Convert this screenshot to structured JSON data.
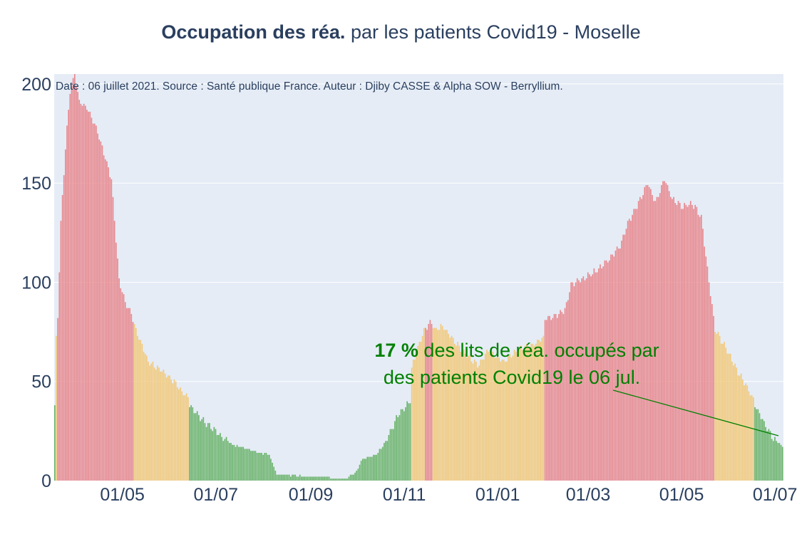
{
  "title": {
    "bold": "Occupation des réa.",
    "rest": " par les patients Covid19 - Moselle"
  },
  "source_note": "Date : 06 juillet 2021. Source : Santé publique France. Auteur : Djiby CASSE & Alpha SOW - Berryllium.",
  "annotation": {
    "percent": "17  %",
    "line1_rest": " des lits de réa. occupés par",
    "line2": "des patients Covid19 le 06 jul.",
    "color": "#008000"
  },
  "colors": {
    "red": "#e8878d",
    "red_edge": "#cc4a55",
    "orange": "#f2c97a",
    "green": "#6bb36b",
    "plot_bg": "#e5ecf6",
    "grid": "#ffffff",
    "text": "#2a3f5f"
  },
  "chart_data": {
    "type": "bar",
    "x_start": "2020-03-18",
    "x_end": "2021-07-06",
    "ylim": [
      0,
      205
    ],
    "yticks": [
      0,
      50,
      100,
      150,
      200
    ],
    "xticks": [
      {
        "date": "2020-05-01",
        "label": "01/05"
      },
      {
        "date": "2020-07-01",
        "label": "01/07"
      },
      {
        "date": "2020-09-01",
        "label": "01/09"
      },
      {
        "date": "2020-11-01",
        "label": "01/11"
      },
      {
        "date": "2021-01-01",
        "label": "01/01"
      },
      {
        "date": "2021-03-01",
        "label": "01/03"
      },
      {
        "date": "2021-05-01",
        "label": "01/05"
      },
      {
        "date": "2021-07-01",
        "label": "01/07"
      }
    ],
    "keyframes": [
      [
        "2020-03-18",
        38,
        "green"
      ],
      [
        "2020-03-19",
        72,
        "orange"
      ],
      [
        "2020-03-20",
        82,
        "red"
      ],
      [
        "2020-03-22",
        130,
        "red"
      ],
      [
        "2020-03-25",
        168,
        "red"
      ],
      [
        "2020-03-28",
        196,
        "red"
      ],
      [
        "2020-03-31",
        205,
        "red"
      ],
      [
        "2020-04-03",
        191,
        "red"
      ],
      [
        "2020-04-08",
        188,
        "red"
      ],
      [
        "2020-04-13",
        180,
        "red"
      ],
      [
        "2020-04-18",
        168,
        "red"
      ],
      [
        "2020-04-24",
        152,
        "red"
      ],
      [
        "2020-04-29",
        101,
        "red"
      ],
      [
        "2020-05-03",
        90,
        "red"
      ],
      [
        "2020-05-07",
        84,
        "red"
      ],
      [
        "2020-05-10",
        76,
        "orange"
      ],
      [
        "2020-05-18",
        60,
        "orange"
      ],
      [
        "2020-05-26",
        56,
        "orange"
      ],
      [
        "2020-06-04",
        50,
        "orange"
      ],
      [
        "2020-06-10",
        44,
        "orange"
      ],
      [
        "2020-06-13",
        42,
        "orange"
      ],
      [
        "2020-06-14",
        38,
        "green"
      ],
      [
        "2020-06-22",
        31,
        "green"
      ],
      [
        "2020-07-02",
        24,
        "green"
      ],
      [
        "2020-07-12",
        18,
        "green"
      ],
      [
        "2020-07-25",
        15,
        "green"
      ],
      [
        "2020-08-05",
        13,
        "green"
      ],
      [
        "2020-08-10",
        3,
        "green"
      ],
      [
        "2020-09-05",
        2,
        "green"
      ],
      [
        "2020-09-10",
        2,
        "green"
      ],
      [
        "2020-09-15",
        1,
        "green"
      ],
      [
        "2020-09-25",
        1,
        "green"
      ],
      [
        "2020-10-01",
        5,
        "green"
      ],
      [
        "2020-10-05",
        11,
        "green"
      ],
      [
        "2020-10-14",
        13,
        "green"
      ],
      [
        "2020-10-21",
        21,
        "green"
      ],
      [
        "2020-10-28",
        33,
        "green"
      ],
      [
        "2020-11-05",
        40,
        "green"
      ],
      [
        "2020-11-06",
        57,
        "orange"
      ],
      [
        "2020-11-14",
        76,
        "orange"
      ],
      [
        "2020-11-19",
        80,
        "red"
      ],
      [
        "2020-11-21",
        76,
        "orange"
      ],
      [
        "2020-11-26",
        78,
        "orange"
      ],
      [
        "2020-12-04",
        70,
        "orange"
      ],
      [
        "2020-12-12",
        63,
        "orange"
      ],
      [
        "2020-12-20",
        58,
        "orange"
      ],
      [
        "2020-12-26",
        66,
        "orange"
      ],
      [
        "2021-01-05",
        60,
        "orange"
      ],
      [
        "2021-01-15",
        66,
        "orange"
      ],
      [
        "2021-01-23",
        68,
        "orange"
      ],
      [
        "2021-01-31",
        72,
        "orange"
      ],
      [
        "2021-02-01",
        82,
        "red"
      ],
      [
        "2021-02-07",
        83,
        "red"
      ],
      [
        "2021-02-14",
        86,
        "red"
      ],
      [
        "2021-02-18",
        99,
        "red"
      ],
      [
        "2021-02-26",
        102,
        "red"
      ],
      [
        "2021-03-07",
        106,
        "red"
      ],
      [
        "2021-03-15",
        112,
        "red"
      ],
      [
        "2021-03-22",
        118,
        "red"
      ],
      [
        "2021-03-27",
        130,
        "red"
      ],
      [
        "2021-04-03",
        140,
        "red"
      ],
      [
        "2021-04-09",
        150,
        "red"
      ],
      [
        "2021-04-14",
        140,
        "red"
      ],
      [
        "2021-04-20",
        152,
        "red"
      ],
      [
        "2021-04-25",
        142,
        "red"
      ],
      [
        "2021-05-02",
        138,
        "red"
      ],
      [
        "2021-05-08",
        140,
        "red"
      ],
      [
        "2021-05-14",
        133,
        "red"
      ],
      [
        "2021-05-19",
        100,
        "red"
      ],
      [
        "2021-05-22",
        82,
        "red"
      ],
      [
        "2021-05-23",
        76,
        "orange"
      ],
      [
        "2021-05-30",
        67,
        "orange"
      ],
      [
        "2021-06-06",
        56,
        "orange"
      ],
      [
        "2021-06-13",
        47,
        "orange"
      ],
      [
        "2021-06-17",
        41,
        "orange"
      ],
      [
        "2021-06-18",
        38,
        "green"
      ],
      [
        "2021-06-24",
        29,
        "green"
      ],
      [
        "2021-06-30",
        21,
        "green"
      ],
      [
        "2021-07-04",
        19,
        "green"
      ],
      [
        "2021-07-06",
        17,
        "green"
      ]
    ]
  }
}
